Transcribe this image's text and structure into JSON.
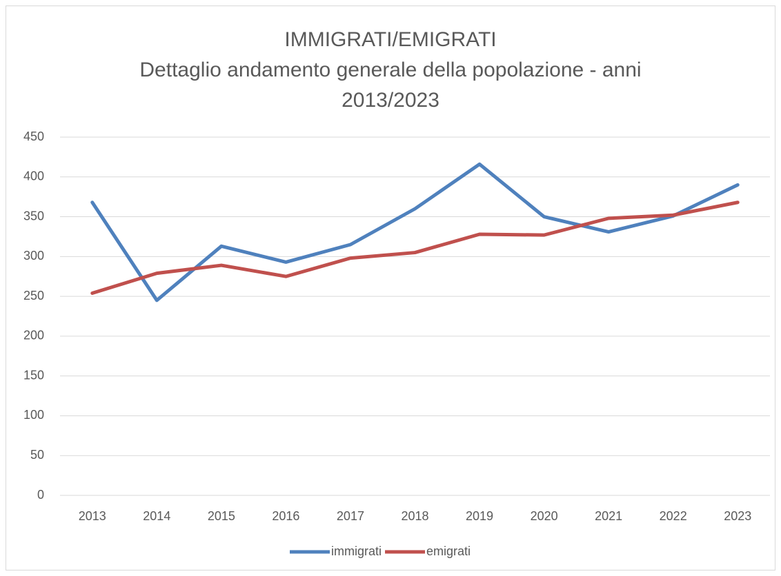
{
  "chart_data": {
    "type": "line",
    "title": "IMMIGRATI/EMIGRATI",
    "subtitle": "Dettaglio andamento generale della popolazione - anni 2013/2023",
    "categories": [
      "2013",
      "2014",
      "2015",
      "2016",
      "2017",
      "2018",
      "2019",
      "2020",
      "2021",
      "2022",
      "2023"
    ],
    "series": [
      {
        "name": "immigrati",
        "color": "#4f81bd",
        "values": [
          368,
          245,
          313,
          293,
          315,
          360,
          416,
          350,
          331,
          351,
          390
        ]
      },
      {
        "name": "emigrati",
        "color": "#c0504d",
        "values": [
          254,
          279,
          289,
          275,
          298,
          305,
          328,
          327,
          348,
          352,
          368
        ]
      }
    ],
    "ylim": [
      0,
      450
    ],
    "yticks": [
      0,
      50,
      100,
      150,
      200,
      250,
      300,
      350,
      400,
      450
    ],
    "grid": true,
    "legend": "bottom"
  }
}
